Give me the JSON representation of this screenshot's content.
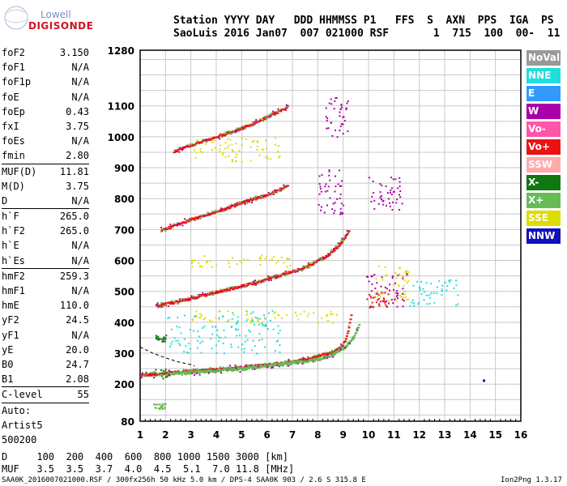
{
  "logo": {
    "line1": "Lowell",
    "line2": "DIGISONDE"
  },
  "header": {
    "line1": "Station YYYY DAY   DDD HHMMSS P1   FFS  S  AXN  PPS  IGA  PS",
    "line2": "SaoLuis 2016 Jan07  007 021000 RSF       1  715  100  00-  11"
  },
  "params": [
    {
      "key": "foF2",
      "value": "3.150"
    },
    {
      "key": "foF1",
      "value": "N/A"
    },
    {
      "key": "foF1p",
      "value": "N/A"
    },
    {
      "key": "foE",
      "value": "N/A"
    },
    {
      "key": "foEp",
      "value": "0.43"
    },
    {
      "key": "fxI",
      "value": "3.75"
    },
    {
      "key": "foEs",
      "value": "N/A"
    },
    {
      "key": "fmin",
      "value": "2.80"
    },
    {
      "key": "MUF(D)",
      "value": "11.81"
    },
    {
      "key": "M(D)",
      "value": "3.75"
    },
    {
      "key": "D",
      "value": "N/A"
    },
    {
      "key": "h`F",
      "value": "265.0"
    },
    {
      "key": "h`F2",
      "value": "265.0"
    },
    {
      "key": "h`E",
      "value": "N/A"
    },
    {
      "key": "h`Es",
      "value": "N/A"
    },
    {
      "key": "hmF2",
      "value": "259.3"
    },
    {
      "key": "hmF1",
      "value": "N/A"
    },
    {
      "key": "hmE",
      "value": "110.0"
    },
    {
      "key": "yF2",
      "value": "24.5"
    },
    {
      "key": "yF1",
      "value": "N/A"
    },
    {
      "key": "yE",
      "value": "20.0"
    },
    {
      "key": "B0",
      "value": "24.7"
    },
    {
      "key": "B1",
      "value": "2.08"
    },
    {
      "key": "C-level",
      "value": "55"
    }
  ],
  "auto": {
    "line1": "Auto:",
    "line2": "Artist5",
    "line3": "500200"
  },
  "legend": [
    {
      "label": "NoVal",
      "color": "#999999"
    },
    {
      "label": "NNE",
      "color": "#22dddd"
    },
    {
      "label": "E",
      "color": "#3399ff"
    },
    {
      "label": "W",
      "color": "#aa00aa"
    },
    {
      "label": "Vo-",
      "color": "#ff55aa"
    },
    {
      "label": "Vo+",
      "color": "#ee1111"
    },
    {
      "label": "SSW",
      "color": "#ffaaaa"
    },
    {
      "label": "X-",
      "color": "#117711"
    },
    {
      "label": "X+",
      "color": "#66bb55"
    },
    {
      "label": "SSE",
      "color": "#dddd00"
    },
    {
      "label": "NNW",
      "color": "#1111bb"
    }
  ],
  "bottom": {
    "d_line": "D     100  200  400  600  800 1000 1500 3000 [km]",
    "muf_line": "MUF   3.5  3.5  3.7  4.0  4.5  5.1  7.0 11.8 [MHz]"
  },
  "footer": {
    "left": "SAA0K_2016007021000.RSF / 300fx256h 50 kHz 5.0 km / DPS-4 SAA0K 903 / 2.6 S 315.8 E",
    "right": "Ion2Png 1.3.17"
  },
  "chart_data": {
    "type": "scatter",
    "title": "",
    "xlabel": "",
    "ylabel": "",
    "xlim": [
      1,
      16
    ],
    "ylim": [
      80,
      1280
    ],
    "x_ticks": [
      1,
      2,
      3,
      4,
      5,
      6,
      7,
      8,
      9,
      10,
      11,
      12,
      13,
      14,
      15,
      16
    ],
    "y_ticks": [
      80,
      200,
      300,
      400,
      500,
      600,
      700,
      800,
      900,
      1000,
      1100,
      1280
    ],
    "traces": [
      {
        "name": "O-trace 1-hop",
        "color": "#ee1111",
        "x": [
          1.0,
          2.0,
          3.0,
          4.0,
          5.0,
          6.0,
          7.0,
          7.6,
          8.0,
          8.5,
          8.8,
          9.0,
          9.1,
          9.2,
          9.3
        ],
        "y": [
          230,
          238,
          245,
          250,
          256,
          265,
          275,
          285,
          295,
          305,
          318,
          335,
          355,
          390,
          430
        ]
      },
      {
        "name": "X-trace 1-hop",
        "color": "#66bb55",
        "x": [
          2.0,
          3.0,
          4.0,
          5.0,
          6.0,
          7.0,
          8.0,
          8.6,
          9.0,
          9.3,
          9.5,
          9.6
        ],
        "y": [
          232,
          240,
          246,
          252,
          262,
          272,
          282,
          300,
          320,
          345,
          375,
          395
        ]
      },
      {
        "name": "2-hop",
        "color": "#ee1111",
        "x": [
          1.6,
          2.5,
          3.5,
          4.5,
          5.5,
          6.5,
          7.5,
          8.2,
          8.8,
          9.2
        ],
        "y": [
          455,
          470,
          490,
          510,
          530,
          555,
          580,
          610,
          650,
          700
        ]
      },
      {
        "name": "3-hop",
        "color": "#ee1111",
        "x": [
          1.8,
          3.0,
          4.0,
          5.0,
          6.0,
          6.8
        ],
        "y": [
          700,
          735,
          760,
          790,
          815,
          845
        ]
      },
      {
        "name": "4-hop",
        "color": "#ee1111",
        "x": [
          2.3,
          3.3,
          4.3,
          5.3,
          6.2,
          6.8
        ],
        "y": [
          955,
          985,
          1010,
          1040,
          1075,
          1100
        ]
      }
    ],
    "clusters": [
      {
        "color": "#aa00aa",
        "x_range": [
          10.0,
          11.3
        ],
        "y_range": [
          760,
          880
        ]
      },
      {
        "color": "#aa00aa",
        "x_range": [
          9.9,
          11.5
        ],
        "y_range": [
          450,
          560
        ]
      },
      {
        "color": "#22dddd",
        "x_range": [
          11.6,
          13.5
        ],
        "y_range": [
          455,
          540
        ]
      },
      {
        "color": "#dddd00",
        "x_range": [
          10.2,
          11.6
        ],
        "y_range": [
          470,
          590
        ]
      },
      {
        "color": "#ee1111",
        "x_range": [
          10.0,
          10.8
        ],
        "y_range": [
          450,
          500
        ]
      },
      {
        "color": "#22dddd",
        "x_range": [
          2.0,
          6.5
        ],
        "y_range": [
          300,
          440
        ]
      },
      {
        "color": "#dddd00",
        "x_range": [
          3.0,
          9.0
        ],
        "y_range": [
          400,
          440
        ]
      },
      {
        "color": "#dddd00",
        "x_range": [
          3.0,
          7.0
        ],
        "y_range": [
          580,
          620
        ]
      },
      {
        "color": "#aa00aa",
        "x_range": [
          8.0,
          9.0
        ],
        "y_range": [
          750,
          900
        ]
      },
      {
        "color": "#aa00aa",
        "x_range": [
          8.3,
          9.2
        ],
        "y_range": [
          1000,
          1130
        ]
      },
      {
        "color": "#dddd00",
        "x_range": [
          3.0,
          6.5
        ],
        "y_range": [
          920,
          1000
        ]
      },
      {
        "color": "#117711",
        "x_range": [
          1.5,
          2.1
        ],
        "y_range": [
          220,
          250
        ]
      },
      {
        "color": "#66bb55",
        "x_range": [
          1.5,
          2.0
        ],
        "y_range": [
          120,
          140
        ]
      },
      {
        "color": "#117711",
        "x_range": [
          1.6,
          2.0
        ],
        "y_range": [
          340,
          360
        ]
      }
    ],
    "profile_curve": {
      "color": "#000000",
      "dashed": true,
      "x": [
        1.0,
        1.5,
        2.0,
        2.5,
        3.0,
        3.15
      ],
      "y": [
        320,
        300,
        285,
        272,
        263,
        258
      ]
    },
    "outliers": [
      {
        "x": 14.5,
        "y": 215,
        "color": "#1111bb"
      }
    ]
  }
}
